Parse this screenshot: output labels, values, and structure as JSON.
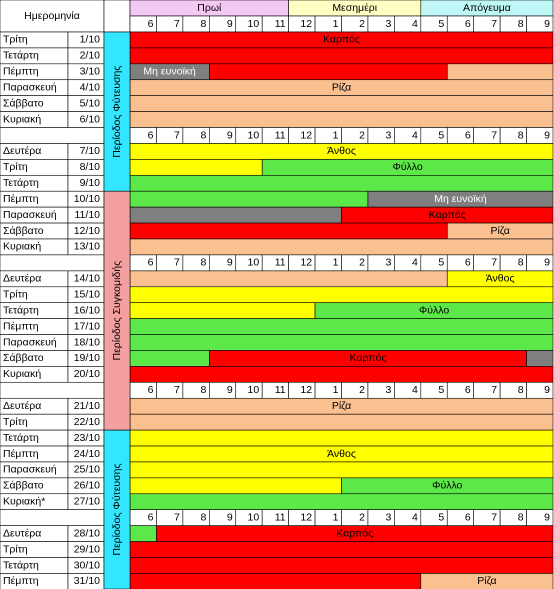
{
  "header": {
    "date_label": "Ημερομηνία",
    "groups": [
      {
        "label": "Πρωί",
        "columns": 6,
        "color": "#f4c8f4"
      },
      {
        "label": "Μεσημέρι",
        "columns": 5,
        "color": "#ffffc4"
      },
      {
        "label": "Απόγευμα",
        "columns": 5,
        "color": "#bff6f6"
      }
    ],
    "hours": [
      6,
      7,
      8,
      9,
      10,
      11,
      12,
      1,
      2,
      3,
      4,
      5,
      6,
      7,
      8,
      9
    ]
  },
  "colors": {
    "red": "#ff0000",
    "tan": "#fac090",
    "yellow": "#ffff00",
    "green": "#5de84a",
    "gray": "#7f7f7f"
  },
  "periods": [
    {
      "label": "Περίοδος Φύτευσης",
      "days": 9,
      "color": "#33e6ff"
    },
    {
      "label": "Περίοδος Συγκομιδής",
      "days": 13,
      "color": "#f4a0a0"
    },
    {
      "label": "Περίοδος Φύτευσης",
      "days": 9,
      "color": "#33e6ff"
    }
  ],
  "sections": [
    {
      "days": [
        {
          "weekday": "Τρίτη",
          "date": "1/10",
          "segments": [
            {
              "start": 0,
              "end": 16,
              "color": "red",
              "label": "Καρπός"
            }
          ]
        },
        {
          "weekday": "Τετάρτη",
          "date": "2/10",
          "segments": [
            {
              "start": 0,
              "end": 16,
              "color": "red"
            }
          ]
        },
        {
          "weekday": "Πέμπτη",
          "date": "3/10",
          "segments": [
            {
              "start": 0,
              "end": 3,
              "color": "gray",
              "label": "Μη ευνοϊκή"
            },
            {
              "start": 3,
              "end": 12,
              "color": "red"
            },
            {
              "start": 12,
              "end": 16,
              "color": "tan"
            }
          ]
        },
        {
          "weekday": "Παρασκευή",
          "date": "4/10",
          "segments": [
            {
              "start": 0,
              "end": 16,
              "color": "tan",
              "label": "Ρίζα"
            }
          ]
        },
        {
          "weekday": "Σάββατο",
          "date": "5/10",
          "segments": [
            {
              "start": 0,
              "end": 16,
              "color": "tan"
            }
          ]
        },
        {
          "weekday": "Κυριακή",
          "date": "6/10",
          "segments": [
            {
              "start": 0,
              "end": 16,
              "color": "tan"
            }
          ]
        }
      ]
    },
    {
      "days": [
        {
          "weekday": "Δευτέρα",
          "date": "7/10",
          "segments": [
            {
              "start": 0,
              "end": 16,
              "color": "yellow",
              "label": "Άνθος"
            }
          ]
        },
        {
          "weekday": "Τρίτη",
          "date": "8/10",
          "segments": [
            {
              "start": 0,
              "end": 5,
              "color": "yellow"
            },
            {
              "start": 5,
              "end": 16,
              "color": "green",
              "label": "Φύλλο"
            }
          ]
        },
        {
          "weekday": "Τετάρτη",
          "date": "9/10",
          "segments": [
            {
              "start": 0,
              "end": 16,
              "color": "green"
            }
          ]
        },
        {
          "weekday": "Πέμπτη",
          "date": "10/10",
          "segments": [
            {
              "start": 0,
              "end": 9,
              "color": "green"
            },
            {
              "start": 9,
              "end": 16,
              "color": "gray",
              "label": "Μη ευνοϊκή"
            }
          ]
        },
        {
          "weekday": "Παρασκευή",
          "date": "11/10",
          "segments": [
            {
              "start": 0,
              "end": 8,
              "color": "gray"
            },
            {
              "start": 8,
              "end": 16,
              "color": "red",
              "label": "Καρπός"
            }
          ]
        },
        {
          "weekday": "Σάββατο",
          "date": "12/10",
          "segments": [
            {
              "start": 0,
              "end": 12,
              "color": "red"
            },
            {
              "start": 12,
              "end": 16,
              "color": "tan",
              "label": "Ρίζα"
            }
          ]
        },
        {
          "weekday": "Κυριακή",
          "date": "13/10",
          "segments": [
            {
              "start": 0,
              "end": 16,
              "color": "tan"
            }
          ]
        }
      ]
    },
    {
      "days": [
        {
          "weekday": "Δευτέρα",
          "date": "14/10",
          "segments": [
            {
              "start": 0,
              "end": 12,
              "color": "tan"
            },
            {
              "start": 12,
              "end": 16,
              "color": "yellow",
              "label": "Άνθος"
            }
          ]
        },
        {
          "weekday": "Τρίτη",
          "date": "15/10",
          "segments": [
            {
              "start": 0,
              "end": 16,
              "color": "yellow"
            }
          ]
        },
        {
          "weekday": "Τετάρτη",
          "date": "16/10",
          "segments": [
            {
              "start": 0,
              "end": 7,
              "color": "yellow"
            },
            {
              "start": 7,
              "end": 16,
              "color": "green",
              "label": "Φύλλο"
            }
          ]
        },
        {
          "weekday": "Πέμπτη",
          "date": "17/10",
          "segments": [
            {
              "start": 0,
              "end": 16,
              "color": "green"
            }
          ]
        },
        {
          "weekday": "Παρασκευή",
          "date": "18/10",
          "segments": [
            {
              "start": 0,
              "end": 16,
              "color": "green"
            }
          ]
        },
        {
          "weekday": "Σάββατο",
          "date": "19/10",
          "segments": [
            {
              "start": 0,
              "end": 3,
              "color": "green"
            },
            {
              "start": 3,
              "end": 15,
              "color": "red",
              "label": "Καρπός"
            },
            {
              "start": 15,
              "end": 16,
              "color": "gray"
            }
          ]
        },
        {
          "weekday": "Κυριακή",
          "date": "20/10",
          "segments": [
            {
              "start": 0,
              "end": 16,
              "color": "red"
            }
          ]
        }
      ]
    },
    {
      "days": [
        {
          "weekday": "Δευτέρα",
          "date": "21/10",
          "segments": [
            {
              "start": 0,
              "end": 16,
              "color": "tan",
              "label": "Ρίζα"
            }
          ]
        },
        {
          "weekday": "Τρίτη",
          "date": "22/10",
          "segments": [
            {
              "start": 0,
              "end": 16,
              "color": "tan"
            }
          ]
        },
        {
          "weekday": "Τετάρτη",
          "date": "23/10",
          "segments": [
            {
              "start": 0,
              "end": 16,
              "color": "yellow"
            }
          ]
        },
        {
          "weekday": "Πέμπτη",
          "date": "24/10",
          "segments": [
            {
              "start": 0,
              "end": 16,
              "color": "yellow",
              "label": "Άνθος"
            }
          ]
        },
        {
          "weekday": "Παρασκευή",
          "date": "25/10",
          "segments": [
            {
              "start": 0,
              "end": 16,
              "color": "yellow"
            }
          ]
        },
        {
          "weekday": "Σάββατο",
          "date": "26/10",
          "segments": [
            {
              "start": 0,
              "end": 8,
              "color": "yellow"
            },
            {
              "start": 8,
              "end": 16,
              "color": "green",
              "label": "Φύλλο"
            }
          ]
        },
        {
          "weekday": "Κυριακή*",
          "date": "27/10",
          "segments": [
            {
              "start": 0,
              "end": 16,
              "color": "green"
            }
          ]
        }
      ]
    },
    {
      "days": [
        {
          "weekday": "Δευτέρα",
          "date": "28/10",
          "segments": [
            {
              "start": 0,
              "end": 1,
              "color": "green"
            },
            {
              "start": 1,
              "end": 16,
              "color": "red",
              "label": "Καρπός"
            }
          ]
        },
        {
          "weekday": "Τρίτη",
          "date": "29/10",
          "segments": [
            {
              "start": 0,
              "end": 16,
              "color": "red"
            }
          ]
        },
        {
          "weekday": "Τετάρτη",
          "date": "30/10",
          "segments": [
            {
              "start": 0,
              "end": 16,
              "color": "red"
            }
          ]
        },
        {
          "weekday": "Πέμπτη",
          "date": "31/10",
          "segments": [
            {
              "start": 0,
              "end": 11,
              "color": "red"
            },
            {
              "start": 11,
              "end": 16,
              "color": "tan",
              "label": "Ρίζα"
            }
          ]
        }
      ]
    }
  ]
}
